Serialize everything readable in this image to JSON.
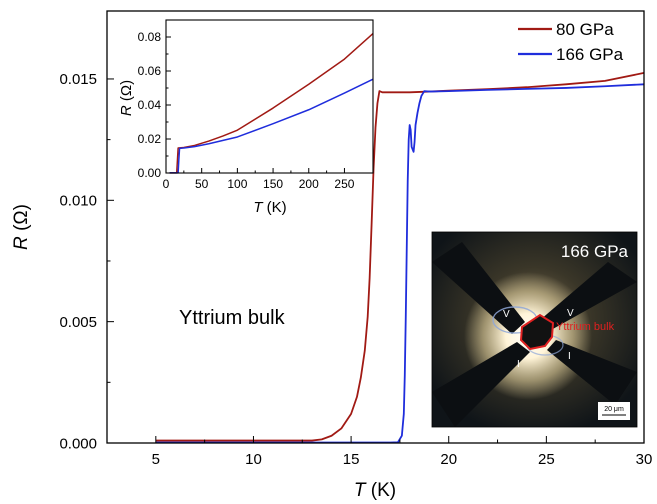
{
  "chart_data": [
    {
      "type": "line",
      "xlabel": "T (K)",
      "ylabel": "R (Ω)",
      "xlim": [
        2.5,
        30
      ],
      "ylim": [
        0,
        0.0178
      ],
      "xticks": [
        5,
        10,
        15,
        20,
        25,
        30
      ],
      "yticks": [
        0.0,
        0.005,
        0.01,
        0.015
      ],
      "ytick_labels": [
        "0.000",
        "0.005",
        "0.010",
        "0.015"
      ],
      "legend_position": "top-right",
      "annotation": "Yttrium bulk",
      "series": [
        {
          "name": "80 GPa",
          "color": "#a11a14",
          "x": [
            5,
            8,
            10,
            12,
            13,
            13.5,
            14,
            14.5,
            15,
            15.3,
            15.5,
            15.7,
            15.85,
            15.95,
            16.05,
            16.15,
            16.25,
            16.35,
            16.45,
            16.6,
            17,
            18,
            19,
            20,
            22,
            24,
            25,
            26,
            28,
            30
          ],
          "y": [
            0.0001,
            0.0001,
            0.0001,
            0.0001,
            0.0001,
            0.00015,
            0.0003,
            0.0006,
            0.0012,
            0.0019,
            0.0027,
            0.0038,
            0.0052,
            0.0068,
            0.009,
            0.0113,
            0.013,
            0.014,
            0.0145,
            0.01445,
            0.01445,
            0.01445,
            0.01448,
            0.01452,
            0.01458,
            0.01466,
            0.01472,
            0.01478,
            0.01492,
            0.01525
          ]
        },
        {
          "name": "166 GPa",
          "color": "#1f2ddc",
          "x": [
            5,
            10,
            15,
            17,
            17.4,
            17.6,
            17.7,
            17.75,
            17.8,
            17.85,
            17.9,
            17.95,
            18.0,
            18.05,
            18.1,
            18.2,
            18.25,
            18.3,
            18.4,
            18.5,
            18.6,
            18.75,
            19,
            20,
            22,
            24,
            26,
            28,
            30
          ],
          "y": [
            2e-05,
            2e-05,
            2e-05,
            2e-05,
            3e-05,
            0.0003,
            0.0012,
            0.0028,
            0.0052,
            0.008,
            0.0108,
            0.0125,
            0.0131,
            0.0129,
            0.0122,
            0.012,
            0.0124,
            0.0131,
            0.0136,
            0.014,
            0.0143,
            0.0145,
            0.01448,
            0.0145,
            0.01455,
            0.01459,
            0.01463,
            0.0147,
            0.01478
          ]
        }
      ]
    },
    {
      "type": "line",
      "role": "inset",
      "xlabel": "T (K)",
      "ylabel": "R (Ω)",
      "xlim": [
        0,
        290
      ],
      "ylim": [
        0,
        0.09
      ],
      "xticks": [
        0,
        50,
        100,
        150,
        200,
        250
      ],
      "yticks": [
        0.0,
        0.02,
        0.04,
        0.06,
        0.08
      ],
      "ytick_labels": [
        "0.00",
        "0.02",
        "0.04",
        "0.06",
        "0.08"
      ],
      "series": [
        {
          "name": "80 GPa",
          "color": "#a11a14",
          "x": [
            5,
            15,
            16,
            17,
            25,
            40,
            60,
            80,
            100,
            150,
            200,
            250,
            290
          ],
          "y": [
            0.0001,
            0.0001,
            0.0075,
            0.0147,
            0.015,
            0.0162,
            0.0188,
            0.0218,
            0.0252,
            0.0382,
            0.0522,
            0.067,
            0.082
          ]
        },
        {
          "name": "166 GPa",
          "color": "#1f2ddc",
          "x": [
            5,
            17,
            18,
            19,
            25,
            40,
            60,
            80,
            100,
            150,
            200,
            250,
            290
          ],
          "y": [
            0.0001,
            0.0001,
            0.008,
            0.0145,
            0.0147,
            0.0155,
            0.0172,
            0.0192,
            0.0212,
            0.029,
            0.0372,
            0.047,
            0.0552
          ]
        }
      ]
    }
  ],
  "photo": {
    "pressure_label": "166 GPa",
    "sample_label": "Yttrium bulk",
    "probe_labels": [
      "V",
      "V",
      "I",
      "I"
    ],
    "scale_bar": "20 μm",
    "outline_color": "#e02020"
  }
}
